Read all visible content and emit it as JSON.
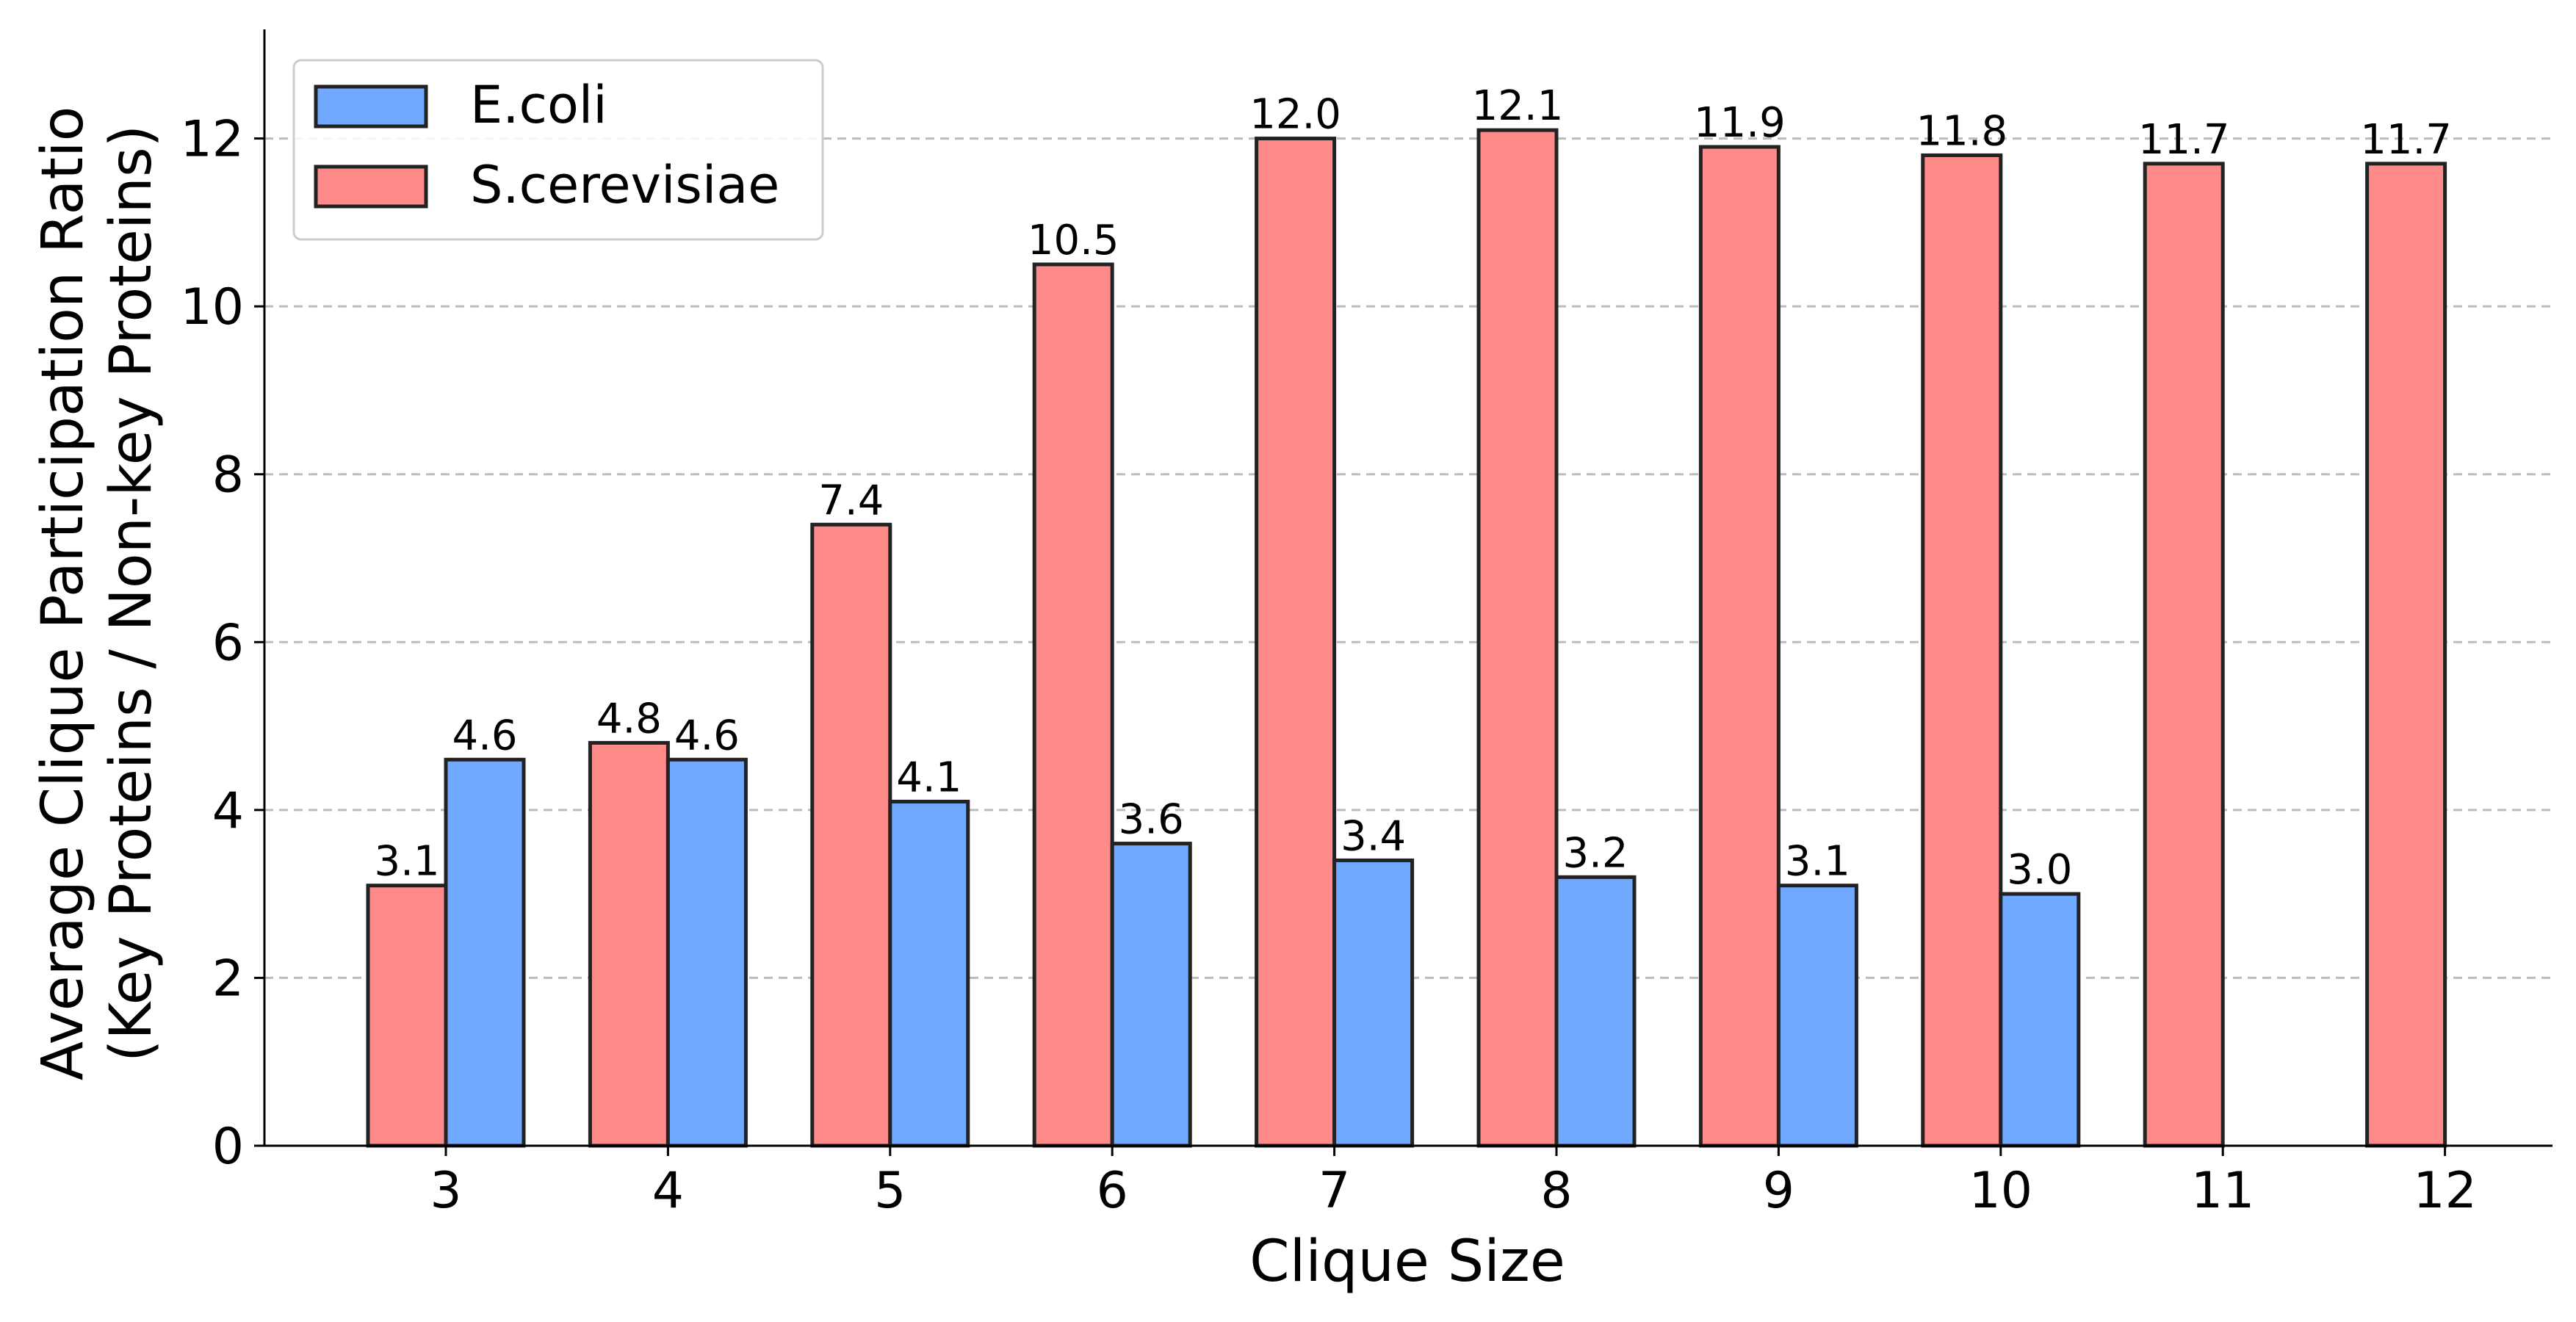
{
  "chart_data": {
    "type": "bar",
    "xlabel": "Clique Size",
    "ylabel_lines": [
      "Average Clique Participation Ratio",
      "(Key Proteins / Non-key Proteins)"
    ],
    "categories": [
      "3",
      "4",
      "5",
      "6",
      "7",
      "8",
      "9",
      "10",
      "11",
      "12"
    ],
    "ylim": [
      0,
      13.3
    ],
    "yticks": [
      0,
      2,
      4,
      6,
      8,
      10,
      12
    ],
    "grid": "y-dashed",
    "legend_position": "top-left",
    "series": [
      {
        "name": "S.cerevisiae",
        "color": "#ff8a8a",
        "values": [
          3.1,
          4.8,
          7.4,
          10.5,
          12.0,
          12.1,
          11.9,
          11.8,
          11.7,
          11.7
        ],
        "labels": [
          "3.1",
          "4.8",
          "7.4",
          "10.5",
          "12.0",
          "12.1",
          "11.9",
          "11.8",
          "11.7",
          "11.7"
        ]
      },
      {
        "name": "E.coli",
        "color": "#70a9ff",
        "values": [
          4.6,
          4.6,
          4.1,
          3.6,
          3.4,
          3.2,
          3.1,
          3.0,
          null,
          null
        ],
        "labels": [
          "4.6",
          "4.6",
          "4.1",
          "3.6",
          "3.4",
          "3.2",
          "3.1",
          "3.0",
          "",
          ""
        ]
      }
    ],
    "legend_order": [
      "E.coli",
      "S.cerevisiae"
    ]
  }
}
